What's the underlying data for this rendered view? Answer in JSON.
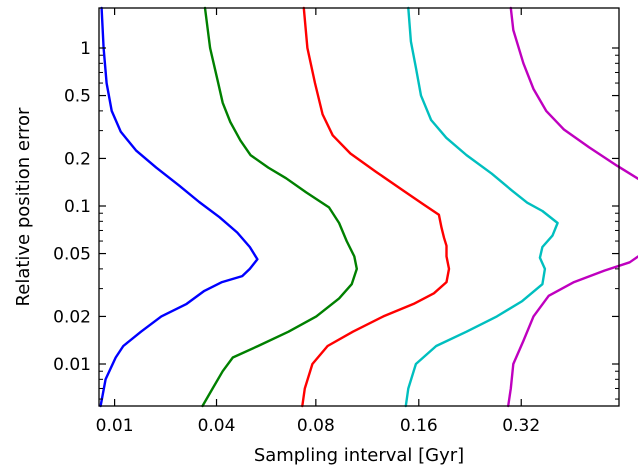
{
  "chart_data": {
    "type": "line",
    "title": "",
    "xlabel": "Sampling interval [Gyr]",
    "ylabel": "Relative position error",
    "x_tick_labels": [
      "0.01",
      "0.04",
      "0.08",
      "0.16",
      "0.32"
    ],
    "y_tick_labels": [
      "0.01",
      "0.02",
      "0.05",
      "0.1",
      "0.2",
      "0.5",
      "1"
    ],
    "y_scale": "log",
    "ylim": [
      0.005,
      2.0
    ],
    "grid": false,
    "legend": "none",
    "series": [
      {
        "color": "#0000ff",
        "curve": [
          [
            0.0,
            0.005
          ],
          [
            0.01,
            0.008
          ],
          [
            0.03,
            0.011
          ],
          [
            0.045,
            0.013
          ],
          [
            0.08,
            0.016
          ],
          [
            0.12,
            0.02
          ],
          [
            0.17,
            0.024
          ],
          [
            0.205,
            0.029
          ],
          [
            0.24,
            0.033
          ],
          [
            0.28,
            0.036
          ],
          [
            0.295,
            0.04
          ],
          [
            0.31,
            0.046
          ],
          [
            0.295,
            0.055
          ],
          [
            0.27,
            0.068
          ],
          [
            0.235,
            0.085
          ],
          [
            0.195,
            0.106
          ],
          [
            0.155,
            0.135
          ],
          [
            0.11,
            0.175
          ],
          [
            0.07,
            0.225
          ],
          [
            0.04,
            0.295
          ],
          [
            0.022,
            0.4
          ],
          [
            0.012,
            0.6
          ],
          [
            0.006,
            1.0
          ],
          [
            0.002,
            2.0
          ]
        ]
      },
      {
        "color": "#008000",
        "curve": [
          [
            0.0,
            0.005
          ],
          [
            0.02,
            0.007
          ],
          [
            0.04,
            0.009
          ],
          [
            0.06,
            0.011
          ],
          [
            0.11,
            0.013
          ],
          [
            0.17,
            0.016
          ],
          [
            0.225,
            0.02
          ],
          [
            0.27,
            0.026
          ],
          [
            0.295,
            0.032
          ],
          [
            0.305,
            0.04
          ],
          [
            0.3,
            0.048
          ],
          [
            0.285,
            0.06
          ],
          [
            0.27,
            0.078
          ],
          [
            0.25,
            0.098
          ],
          [
            0.205,
            0.122
          ],
          [
            0.165,
            0.15
          ],
          [
            0.13,
            0.175
          ],
          [
            0.095,
            0.21
          ],
          [
            0.075,
            0.26
          ],
          [
            0.055,
            0.34
          ],
          [
            0.04,
            0.45
          ],
          [
            0.03,
            0.62
          ],
          [
            0.015,
            1.0
          ],
          [
            0.005,
            2.0
          ]
        ]
      },
      {
        "color": "#ff0000",
        "curve": [
          [
            0.0,
            0.005
          ],
          [
            0.005,
            0.007
          ],
          [
            0.02,
            0.01
          ],
          [
            0.05,
            0.013
          ],
          [
            0.1,
            0.016
          ],
          [
            0.16,
            0.02
          ],
          [
            0.22,
            0.024
          ],
          [
            0.26,
            0.028
          ],
          [
            0.285,
            0.033
          ],
          [
            0.29,
            0.04
          ],
          [
            0.285,
            0.048
          ],
          [
            0.285,
            0.056
          ],
          [
            0.28,
            0.063
          ],
          [
            0.275,
            0.073
          ],
          [
            0.27,
            0.088
          ],
          [
            0.24,
            0.102
          ],
          [
            0.2,
            0.125
          ],
          [
            0.145,
            0.165
          ],
          [
            0.095,
            0.215
          ],
          [
            0.06,
            0.28
          ],
          [
            0.04,
            0.38
          ],
          [
            0.025,
            0.6
          ],
          [
            0.01,
            1.0
          ],
          [
            0.003,
            2.0
          ]
        ]
      },
      {
        "color": "#00bfbf",
        "curve": [
          [
            0.0,
            0.005
          ],
          [
            0.005,
            0.007
          ],
          [
            0.02,
            0.01
          ],
          [
            0.06,
            0.013
          ],
          [
            0.12,
            0.016
          ],
          [
            0.18,
            0.02
          ],
          [
            0.23,
            0.025
          ],
          [
            0.27,
            0.032
          ],
          [
            0.275,
            0.04
          ],
          [
            0.265,
            0.047
          ],
          [
            0.27,
            0.055
          ],
          [
            0.29,
            0.065
          ],
          [
            0.3,
            0.078
          ],
          [
            0.27,
            0.093
          ],
          [
            0.24,
            0.105
          ],
          [
            0.21,
            0.125
          ],
          [
            0.17,
            0.16
          ],
          [
            0.12,
            0.21
          ],
          [
            0.08,
            0.27
          ],
          [
            0.05,
            0.35
          ],
          [
            0.03,
            0.5
          ],
          [
            0.02,
            0.75
          ],
          [
            0.01,
            1.1
          ],
          [
            0.005,
            2.0
          ]
        ]
      },
      {
        "color": "#bf00bf",
        "curve": [
          [
            0.0,
            0.005
          ],
          [
            0.005,
            0.007
          ],
          [
            0.01,
            0.01
          ],
          [
            0.03,
            0.014
          ],
          [
            0.05,
            0.02
          ],
          [
            0.08,
            0.027
          ],
          [
            0.13,
            0.033
          ],
          [
            0.19,
            0.039
          ],
          [
            0.24,
            0.044
          ],
          [
            0.265,
            0.05
          ],
          [
            0.275,
            0.058
          ],
          [
            0.285,
            0.07
          ],
          [
            0.3,
            0.085
          ],
          [
            0.315,
            0.1
          ],
          [
            0.305,
            0.118
          ],
          [
            0.27,
            0.14
          ],
          [
            0.215,
            0.18
          ],
          [
            0.16,
            0.235
          ],
          [
            0.11,
            0.305
          ],
          [
            0.075,
            0.4
          ],
          [
            0.05,
            0.55
          ],
          [
            0.03,
            0.8
          ],
          [
            0.01,
            1.3
          ],
          [
            0.005,
            2.0
          ]
        ]
      }
    ]
  }
}
